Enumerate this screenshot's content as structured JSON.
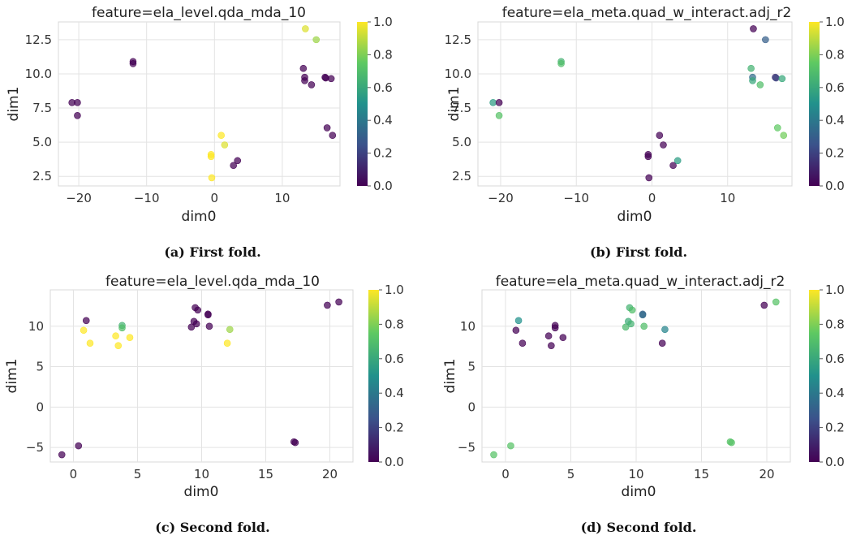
{
  "chart_data": [
    {
      "type": "scatter",
      "title": "feature=ela_level.qda_mda_10",
      "xlabel": "dim0",
      "ylabel": "dim1",
      "caption": "(a) First fold.",
      "xlim": [
        -23,
        18.5
      ],
      "ylim": [
        1.8,
        13.8
      ],
      "xticks": [
        -20,
        -10,
        0,
        10
      ],
      "yticks": [
        2.5,
        5.0,
        7.5,
        10.0,
        12.5
      ],
      "colorbar": {
        "min": 0.0,
        "max": 1.0,
        "ticks": [
          0.0,
          0.2,
          0.4,
          0.6,
          0.8,
          1.0
        ],
        "colormap": "viridis"
      },
      "grid": true,
      "points": [
        {
          "x": -21,
          "y": 7.9,
          "c": 0.0
        },
        {
          "x": -20.2,
          "y": 7.9,
          "c": 0.0
        },
        {
          "x": -20.2,
          "y": 6.95,
          "c": 0.0
        },
        {
          "x": -12,
          "y": 10.9,
          "c": 0.0
        },
        {
          "x": -12,
          "y": 10.75,
          "c": 0.0
        },
        {
          "x": -0.5,
          "y": 4.1,
          "c": 1.0
        },
        {
          "x": -0.5,
          "y": 3.95,
          "c": 1.0
        },
        {
          "x": -0.4,
          "y": 2.4,
          "c": 1.0
        },
        {
          "x": 1.0,
          "y": 5.5,
          "c": 1.0
        },
        {
          "x": 1.5,
          "y": 4.8,
          "c": 0.95
        },
        {
          "x": 2.8,
          "y": 3.3,
          "c": 0.0
        },
        {
          "x": 3.4,
          "y": 3.65,
          "c": 0.0
        },
        {
          "x": 13.1,
          "y": 10.4,
          "c": 0.0
        },
        {
          "x": 13.4,
          "y": 13.3,
          "c": 0.95
        },
        {
          "x": 13.3,
          "y": 9.75,
          "c": 0.0
        },
        {
          "x": 13.3,
          "y": 9.5,
          "c": 0.0
        },
        {
          "x": 14.3,
          "y": 9.2,
          "c": 0.0
        },
        {
          "x": 15.0,
          "y": 12.5,
          "c": 0.85
        },
        {
          "x": 16.3,
          "y": 9.75,
          "c": 0.0
        },
        {
          "x": 16.4,
          "y": 9.7,
          "c": 0.0
        },
        {
          "x": 17.2,
          "y": 9.65,
          "c": 0.0
        },
        {
          "x": 16.6,
          "y": 6.05,
          "c": 0.0
        },
        {
          "x": 17.4,
          "y": 5.5,
          "c": 0.0
        }
      ]
    },
    {
      "type": "scatter",
      "title": "feature=ela_meta.quad_w_interact.adj_r2",
      "xlabel": "dim0",
      "ylabel": "dim1",
      "caption": "(b) First fold.",
      "xlim": [
        -23,
        18.5
      ],
      "ylim": [
        1.8,
        13.8
      ],
      "xticks": [
        -20,
        -10,
        0,
        10
      ],
      "yticks": [
        2.5,
        5.0,
        7.5,
        10.0,
        12.5
      ],
      "colorbar": {
        "min": 0.0,
        "max": 1.0,
        "ticks": [
          0.0,
          0.2,
          0.4,
          0.6,
          0.8,
          1.0
        ],
        "colormap": "viridis"
      },
      "grid": true,
      "points": [
        {
          "x": -21,
          "y": 7.9,
          "c": 0.55
        },
        {
          "x": -20.2,
          "y": 7.9,
          "c": 0.0
        },
        {
          "x": -20.2,
          "y": 6.95,
          "c": 0.72
        },
        {
          "x": -12,
          "y": 10.9,
          "c": 0.65
        },
        {
          "x": -12,
          "y": 10.75,
          "c": 0.7
        },
        {
          "x": -0.5,
          "y": 4.1,
          "c": 0.0
        },
        {
          "x": -0.5,
          "y": 3.95,
          "c": 0.0
        },
        {
          "x": -0.4,
          "y": 2.4,
          "c": 0.0
        },
        {
          "x": 1.0,
          "y": 5.5,
          "c": 0.0
        },
        {
          "x": 1.5,
          "y": 4.8,
          "c": 0.0
        },
        {
          "x": 2.8,
          "y": 3.3,
          "c": 0.0
        },
        {
          "x": 3.4,
          "y": 3.65,
          "c": 0.55
        },
        {
          "x": 13.1,
          "y": 10.4,
          "c": 0.65
        },
        {
          "x": 13.4,
          "y": 13.3,
          "c": 0.0
        },
        {
          "x": 13.3,
          "y": 9.75,
          "c": 0.35
        },
        {
          "x": 13.3,
          "y": 9.5,
          "c": 0.6
        },
        {
          "x": 14.3,
          "y": 9.2,
          "c": 0.7
        },
        {
          "x": 15.0,
          "y": 12.5,
          "c": 0.3
        },
        {
          "x": 16.3,
          "y": 9.75,
          "c": 0.15
        },
        {
          "x": 16.4,
          "y": 9.7,
          "c": 0.2
        },
        {
          "x": 17.2,
          "y": 9.65,
          "c": 0.6
        },
        {
          "x": 16.6,
          "y": 6.05,
          "c": 0.75
        },
        {
          "x": 17.4,
          "y": 5.5,
          "c": 0.78
        }
      ]
    },
    {
      "type": "scatter",
      "title": "feature=ela_level.qda_mda_10",
      "xlabel": "dim0",
      "ylabel": "dim1",
      "caption": "(c) Second fold.",
      "xlim": [
        -1.8,
        21.8
      ],
      "ylim": [
        -6.8,
        14.5
      ],
      "xticks": [
        0,
        5,
        10,
        15,
        20
      ],
      "yticks": [
        -5,
        0,
        5,
        10
      ],
      "colorbar": {
        "min": 0.0,
        "max": 1.0,
        "ticks": [
          0.0,
          0.2,
          0.4,
          0.6,
          0.8,
          1.0
        ],
        "colormap": "viridis"
      },
      "grid": true,
      "points": [
        {
          "x": -0.9,
          "y": -5.9,
          "c": 0.0
        },
        {
          "x": 0.4,
          "y": -4.8,
          "c": 0.0
        },
        {
          "x": 0.8,
          "y": 9.5,
          "c": 1.0
        },
        {
          "x": 1.0,
          "y": 10.7,
          "c": 0.0
        },
        {
          "x": 1.3,
          "y": 7.9,
          "c": 1.0
        },
        {
          "x": 3.3,
          "y": 8.8,
          "c": 1.0
        },
        {
          "x": 3.5,
          "y": 7.6,
          "c": 1.0
        },
        {
          "x": 3.8,
          "y": 10.1,
          "c": 0.65
        },
        {
          "x": 3.8,
          "y": 9.8,
          "c": 0.7
        },
        {
          "x": 4.4,
          "y": 8.6,
          "c": 1.0
        },
        {
          "x": 9.2,
          "y": 9.9,
          "c": 0.0
        },
        {
          "x": 9.4,
          "y": 10.6,
          "c": 0.0
        },
        {
          "x": 9.5,
          "y": 12.3,
          "c": 0.0
        },
        {
          "x": 9.7,
          "y": 12.0,
          "c": 0.0
        },
        {
          "x": 9.6,
          "y": 10.3,
          "c": 0.0
        },
        {
          "x": 10.5,
          "y": 11.5,
          "c": 0.0
        },
        {
          "x": 10.5,
          "y": 11.4,
          "c": 0.0
        },
        {
          "x": 10.6,
          "y": 10.0,
          "c": 0.0
        },
        {
          "x": 12.0,
          "y": 7.9,
          "c": 1.0
        },
        {
          "x": 12.2,
          "y": 9.6,
          "c": 0.85
        },
        {
          "x": 17.2,
          "y": -4.3,
          "c": 0.0
        },
        {
          "x": 17.3,
          "y": -4.4,
          "c": 0.0
        },
        {
          "x": 19.8,
          "y": 12.6,
          "c": 0.0
        },
        {
          "x": 20.7,
          "y": 13.0,
          "c": 0.0
        }
      ]
    },
    {
      "type": "scatter",
      "title": "feature=ela_meta.quad_w_interact.adj_r2",
      "xlabel": "dim0",
      "ylabel": "dim1",
      "caption": "(d) Second fold.",
      "xlim": [
        -1.8,
        21.8
      ],
      "ylim": [
        -6.8,
        14.5
      ],
      "xticks": [
        0,
        5,
        10,
        15,
        20
      ],
      "yticks": [
        -5,
        0,
        5,
        10
      ],
      "colorbar": {
        "min": 0.0,
        "max": 1.0,
        "ticks": [
          0.0,
          0.2,
          0.4,
          0.6,
          0.8,
          1.0
        ],
        "colormap": "viridis"
      },
      "grid": true,
      "points": [
        {
          "x": -0.9,
          "y": -5.9,
          "c": 0.72
        },
        {
          "x": 0.4,
          "y": -4.8,
          "c": 0.72
        },
        {
          "x": 0.8,
          "y": 9.5,
          "c": 0.0
        },
        {
          "x": 1.0,
          "y": 10.7,
          "c": 0.5
        },
        {
          "x": 1.3,
          "y": 7.9,
          "c": 0.0
        },
        {
          "x": 3.3,
          "y": 8.8,
          "c": 0.0
        },
        {
          "x": 3.5,
          "y": 7.6,
          "c": 0.0
        },
        {
          "x": 3.8,
          "y": 10.1,
          "c": 0.0
        },
        {
          "x": 3.8,
          "y": 9.8,
          "c": 0.0
        },
        {
          "x": 4.4,
          "y": 8.6,
          "c": 0.0
        },
        {
          "x": 9.2,
          "y": 9.9,
          "c": 0.68
        },
        {
          "x": 9.4,
          "y": 10.6,
          "c": 0.62
        },
        {
          "x": 9.5,
          "y": 12.3,
          "c": 0.65
        },
        {
          "x": 9.7,
          "y": 12.0,
          "c": 0.7
        },
        {
          "x": 9.6,
          "y": 10.3,
          "c": 0.65
        },
        {
          "x": 10.5,
          "y": 11.5,
          "c": 0.3
        },
        {
          "x": 10.5,
          "y": 11.4,
          "c": 0.35
        },
        {
          "x": 10.6,
          "y": 10.0,
          "c": 0.7
        },
        {
          "x": 12.0,
          "y": 7.9,
          "c": 0.0
        },
        {
          "x": 12.2,
          "y": 9.6,
          "c": 0.45
        },
        {
          "x": 17.2,
          "y": -4.3,
          "c": 0.72
        },
        {
          "x": 17.3,
          "y": -4.4,
          "c": 0.72
        },
        {
          "x": 19.8,
          "y": 12.6,
          "c": 0.0
        },
        {
          "x": 20.7,
          "y": 13.0,
          "c": 0.72
        }
      ]
    }
  ]
}
